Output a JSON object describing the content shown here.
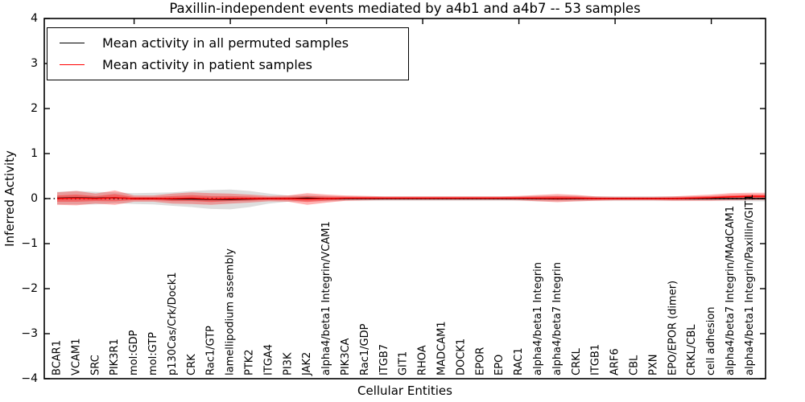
{
  "chart": {
    "title": "Paxillin-independent events mediated by a4b1 and a4b7 -- 53 samples",
    "xlabel": "Cellular Entities",
    "ylabel": "Inferred Activity",
    "legend": {
      "items": [
        {
          "label": "Mean activity in all permuted samples",
          "color": "#000000"
        },
        {
          "label": "Mean activity in patient samples",
          "color": "#ff0000"
        }
      ]
    }
  },
  "chart_data": {
    "type": "line",
    "title": "Paxillin-independent events mediated by a4b1 and a4b7 -- 53 samples",
    "xlabel": "Cellular Entities",
    "ylabel": "Inferred Activity",
    "ylim": [
      -4,
      4
    ],
    "yticks": [
      4,
      3,
      2,
      1,
      0,
      -1,
      -2,
      -3,
      -4
    ],
    "ytick_labels": [
      "4",
      "3",
      "2",
      "1",
      "0",
      "−1",
      "−2",
      "−3",
      "−4"
    ],
    "xtick_positions": [
      4,
      9,
      14,
      19,
      24,
      29,
      34
    ],
    "grid": false,
    "legend_position": "upper left",
    "zero_line_style": "dotted",
    "categories": [
      "BCAR1",
      "VCAM1",
      "SRC",
      "PIK3R1",
      "mol:GDP",
      "mol:GTP",
      "p130Cas/Crk/Dock1",
      "CRK",
      "Rac1/GTP",
      "lamellipodium assembly",
      "PTK2",
      "ITGA4",
      "PI3K",
      "JAK2",
      "alpha4/beta1 Integrin/VCAM1",
      "PIK3CA",
      "Rac1/GDP",
      "ITGB7",
      "GIT1",
      "RHOA",
      "MADCAM1",
      "DOCK1",
      "EPOR",
      "EPO",
      "RAC1",
      "alpha4/beta1 Integrin",
      "alpha4/beta7 Integrin",
      "CRKL",
      "ITGB1",
      "ARF6",
      "CBL",
      "PXN",
      "EPO/EPOR (dimer)",
      "CRKL/CBL",
      "cell adhesion",
      "alpha4/beta7 Integrin/MAdCAM1",
      "alpha4/beta1 Integrin/Paxillin/GIT1"
    ],
    "series": [
      {
        "name": "Mean activity in all permuted samples",
        "color": "#000000",
        "band_color": "rgba(0,0,0,0.13)",
        "mean": [
          0.01,
          0.02,
          0.01,
          0.02,
          0.0,
          0.0,
          -0.01,
          -0.01,
          -0.02,
          -0.02,
          -0.01,
          0.0,
          0.0,
          0.01,
          0.0,
          0.0,
          0.0,
          0.0,
          0.0,
          0.0,
          0.0,
          0.0,
          0.0,
          0.0,
          0.0,
          0.0,
          0.0,
          0.0,
          0.0,
          0.0,
          0.0,
          0.0,
          0.0,
          0.0,
          0.0,
          0.0,
          0.0
        ],
        "std": [
          0.14,
          0.15,
          0.14,
          0.12,
          0.12,
          0.13,
          0.15,
          0.18,
          0.21,
          0.22,
          0.18,
          0.11,
          0.07,
          0.07,
          0.06,
          0.05,
          0.05,
          0.05,
          0.05,
          0.05,
          0.05,
          0.05,
          0.05,
          0.05,
          0.05,
          0.06,
          0.06,
          0.06,
          0.05,
          0.05,
          0.05,
          0.05,
          0.05,
          0.05,
          0.05,
          0.05,
          0.06
        ]
      },
      {
        "name": "Mean activity in patient samples",
        "color": "#ff0000",
        "band_color": "rgba(255,0,0,0.30)",
        "band_core_color": "rgba(255,0,0,0.35)",
        "mean": [
          0.0,
          0.01,
          0.0,
          0.02,
          0.0,
          0.0,
          0.0,
          0.01,
          -0.01,
          0.0,
          0.0,
          0.0,
          0.0,
          -0.01,
          0.0,
          0.01,
          0.01,
          0.01,
          0.01,
          0.01,
          0.01,
          0.01,
          0.01,
          0.01,
          0.01,
          0.01,
          0.01,
          0.01,
          0.0,
          0.0,
          0.0,
          0.0,
          0.0,
          0.01,
          0.02,
          0.04,
          0.05
        ],
        "std": [
          0.14,
          0.16,
          0.11,
          0.16,
          0.07,
          0.07,
          0.11,
          0.13,
          0.13,
          0.11,
          0.09,
          0.06,
          0.07,
          0.13,
          0.09,
          0.06,
          0.05,
          0.04,
          0.04,
          0.04,
          0.04,
          0.04,
          0.04,
          0.04,
          0.05,
          0.07,
          0.09,
          0.07,
          0.05,
          0.04,
          0.04,
          0.04,
          0.05,
          0.06,
          0.07,
          0.08,
          0.08
        ]
      }
    ]
  }
}
